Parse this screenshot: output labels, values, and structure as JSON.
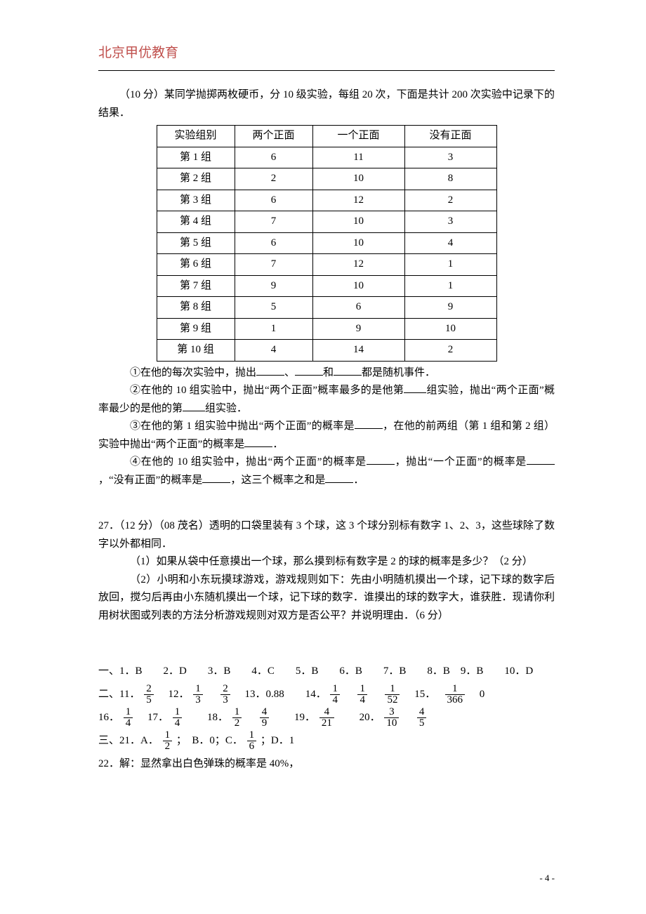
{
  "brand": "北京甲优教育",
  "intro": "（10 分）某同学抛掷两枚硬币，分 10 级实验，每组 20 次，下面是共计 200 次实验中记录下的结果．",
  "table": {
    "headers": [
      "实验组别",
      "两个正面",
      "一个正面",
      "没有正面"
    ],
    "rows": [
      [
        "第 1 组",
        "6",
        "11",
        "3"
      ],
      [
        "第 2 组",
        "2",
        "10",
        "8"
      ],
      [
        "第 3 组",
        "6",
        "12",
        "2"
      ],
      [
        "第 4 组",
        "7",
        "10",
        "3"
      ],
      [
        "第 5 组",
        "6",
        "10",
        "4"
      ],
      [
        "第 6 组",
        "7",
        "12",
        "1"
      ],
      [
        "第 7 组",
        "9",
        "10",
        "1"
      ],
      [
        "第 8 组",
        "5",
        "6",
        "9"
      ],
      [
        "第 9 组",
        "1",
        "9",
        "10"
      ],
      [
        "第 10 组",
        "4",
        "14",
        "2"
      ]
    ]
  },
  "q1": {
    "p1_a": "①在他的每次实验中，抛出",
    "p1_b": "、",
    "p1_c": "和",
    "p1_d": "都是随机事件．",
    "p2_a": "②在他的 10 组实验中，抛出“两个正面”概率最多的是他第",
    "p2_b": "组实验，抛出“两个正面”概率最少的是他的第",
    "p2_c": "组实验．",
    "p3_a": "③在他的第 1 组实验中抛出“两个正面”的概率是",
    "p3_b": "，在他的前两组（第 1 组和第 2 组）实验中抛出“两个正面”的概率是",
    "p3_c": "．",
    "p4_a": "④在他的 10 组实验中，抛出“两个正面”的概率是",
    "p4_b": "，抛出“一个正面”的概率是",
    "p4_c": "，“没有正面”的概率是",
    "p4_d": "，这三个概率之和是",
    "p4_e": "．"
  },
  "q27": {
    "head": "27．（12 分）（08 茂名）透明的口袋里装有 3 个球，这 3 个球分别标有数字 1、2、3，这些球除了数字以外都相同．",
    "p1": "（1）如果从袋中任意摸出一个球，那么摸到标有数字是 2 的球的概率是多少？（2 分）",
    "p2": "（2）小明和小东玩摸球游戏，游戏规则如下：先由小明随机摸出一个球，记下球的数字后放回，搅匀后再由小东随机摸出一个球，记下球的数字．谁摸出的球的数字大，谁获胜．现请你利用树状图或列表的方法分析游戏规则对双方是否公平？并说明理由．（6 分）"
  },
  "answers": {
    "line1": "一、1．B　　2．D　　3．B　　4．C　　5．B　　6．B　　7．B　　8．B　9．B　　10．D",
    "l2_pre": "二、11．",
    "f_2_5": {
      "n": "2",
      "d": "5"
    },
    "l2_12": "　12．",
    "f_1_3": {
      "n": "1",
      "d": "3"
    },
    "f_2_3": {
      "n": "2",
      "d": "3"
    },
    "l2_13": "　13．0.88　　14．",
    "f_1_4": {
      "n": "1",
      "d": "4"
    },
    "f_1_52": {
      "n": "1",
      "d": "52"
    },
    "l2_15": "　15．　",
    "f_1_366": {
      "n": "1",
      "d": "366"
    },
    "zero": "　0",
    "l3_16": "16．",
    "l3_17": "　17．",
    "l3_18": "　　18．",
    "f_1_2": {
      "n": "1",
      "d": "2"
    },
    "f_4_9": {
      "n": "4",
      "d": "9"
    },
    "l3_19": "　　19．",
    "f_4_21": {
      "n": "4",
      "d": "21"
    },
    "l3_20": "　　20．",
    "f_3_10": {
      "n": "3",
      "d": "10"
    },
    "f_4_5": {
      "n": "4",
      "d": "5"
    },
    "l4_pre": "三、21．A．",
    "l4_b": "；　B．0；C．",
    "f_1_6": {
      "n": "1",
      "d": "6"
    },
    "l4_d": "；D．1",
    "l5": "22．解：显然拿出白色弹珠的概率是 40%，"
  },
  "pagenum": "- 4 -"
}
